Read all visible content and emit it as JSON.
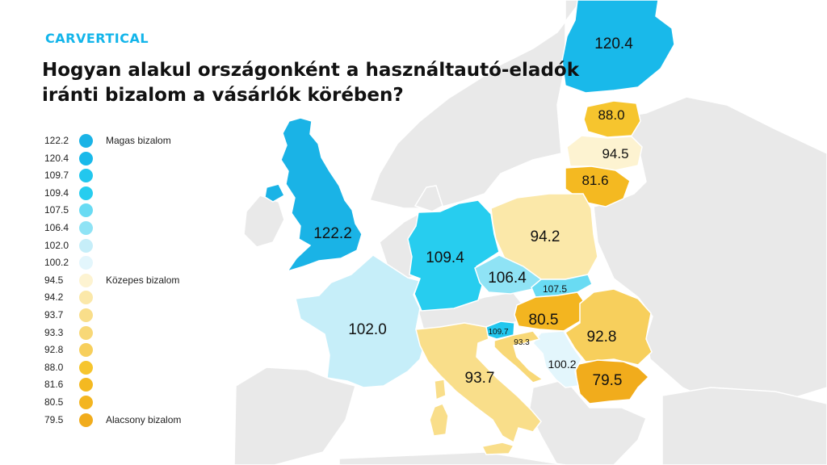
{
  "brand": {
    "logo_text": "CARVERTICAL"
  },
  "title": "Hogyan alakul országonként a használtautó-eladók iránti bizalom a vásárlók körében?",
  "legend": {
    "entries": [
      {
        "value": "122.2",
        "color": "#1ab3e6",
        "label": "Magas bizalom"
      },
      {
        "value": "120.4",
        "color": "#19b9ea",
        "label": ""
      },
      {
        "value": "109.7",
        "color": "#22c7ee",
        "label": ""
      },
      {
        "value": "109.4",
        "color": "#27cdef",
        "label": ""
      },
      {
        "value": "107.5",
        "color": "#69dbf3",
        "label": ""
      },
      {
        "value": "106.4",
        "color": "#8fe3f5",
        "label": ""
      },
      {
        "value": "102.0",
        "color": "#c6eef9",
        "label": ""
      },
      {
        "value": "100.2",
        "color": "#e3f6fc",
        "label": ""
      },
      {
        "value": "94.5",
        "color": "#fdf3d1",
        "label": "Közepes bizalom"
      },
      {
        "value": "94.2",
        "color": "#fbe8a9",
        "label": ""
      },
      {
        "value": "93.7",
        "color": "#f9de8a",
        "label": ""
      },
      {
        "value": "93.3",
        "color": "#f8d877",
        "label": ""
      },
      {
        "value": "92.8",
        "color": "#f7cf5c",
        "label": ""
      },
      {
        "value": "88.0",
        "color": "#f6c52e",
        "label": ""
      },
      {
        "value": "81.6",
        "color": "#f4b921",
        "label": ""
      },
      {
        "value": "80.5",
        "color": "#f3b520",
        "label": ""
      },
      {
        "value": "79.5",
        "color": "#f1ac1c",
        "label": "Alacsony bizalom"
      }
    ]
  },
  "map": {
    "base_land_color": "#e9e9e9",
    "regions": [
      {
        "name": "uk",
        "value": "122.2",
        "color": "#1ab3e6"
      },
      {
        "name": "finland",
        "value": "120.4",
        "color": "#19b9ea"
      },
      {
        "name": "slovenia",
        "value": "109.7",
        "color": "#22c7ee"
      },
      {
        "name": "germany",
        "value": "109.4",
        "color": "#27cdef"
      },
      {
        "name": "slovakia",
        "value": "107.5",
        "color": "#69dbf3"
      },
      {
        "name": "czechia",
        "value": "106.4",
        "color": "#8fe3f5"
      },
      {
        "name": "france",
        "value": "102.0",
        "color": "#c6eef9"
      },
      {
        "name": "serbia",
        "value": "100.2",
        "color": "#e3f6fc"
      },
      {
        "name": "latvia",
        "value": "94.5",
        "color": "#fdf3d1"
      },
      {
        "name": "poland",
        "value": "94.2",
        "color": "#fbe8a9"
      },
      {
        "name": "italy",
        "value": "93.7",
        "color": "#f9de8a"
      },
      {
        "name": "croatia",
        "value": "93.3",
        "color": "#f8d877"
      },
      {
        "name": "romania",
        "value": "92.8",
        "color": "#f7cf5c"
      },
      {
        "name": "estonia",
        "value": "88.0",
        "color": "#f6c52e"
      },
      {
        "name": "lithuania",
        "value": "81.6",
        "color": "#f4b921"
      },
      {
        "name": "hungary",
        "value": "80.5",
        "color": "#f3b520"
      },
      {
        "name": "bulgaria",
        "value": "79.5",
        "color": "#f1ac1c"
      }
    ]
  }
}
